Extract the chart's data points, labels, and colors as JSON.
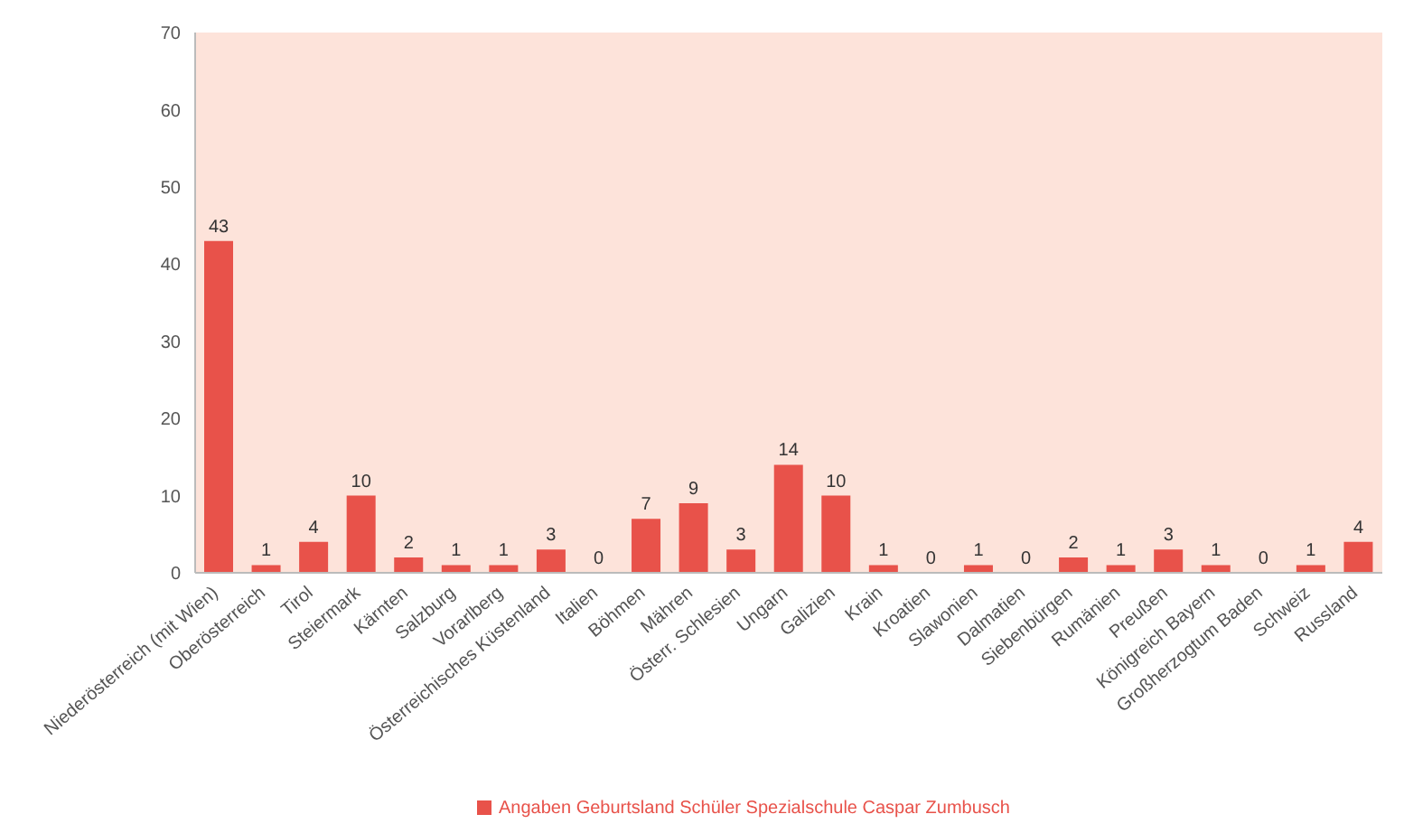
{
  "chart_data": {
    "type": "bar",
    "categories": [
      "Niederösterreich (mit Wien)",
      "Oberösterreich",
      "Tirol",
      "Steiermark",
      "Kärnten",
      "Salzburg",
      "Vorarlberg",
      "Österreichisches Küstenland",
      "Italien",
      "Böhmen",
      "Mähren",
      "Österr. Schlesien",
      "Ungarn",
      "Galizien",
      "Krain",
      "Kroatien",
      "Slawonien",
      "Dalmatien",
      "Siebenbürgen",
      "Rumänien",
      "Preußen",
      "Königreich Bayern",
      "Großherzogtum Baden",
      "Schweiz",
      "Russland"
    ],
    "series": [
      {
        "name": "Angaben Geburtsland Schüler Spezialschule Caspar Zumbusch",
        "color": "#e8524a",
        "values": [
          43,
          1,
          4,
          10,
          2,
          1,
          1,
          3,
          0,
          7,
          9,
          3,
          14,
          10,
          1,
          0,
          1,
          0,
          2,
          1,
          3,
          1,
          0,
          1,
          4
        ]
      }
    ],
    "ylim": [
      0,
      70
    ],
    "yticks": [
      0,
      10,
      20,
      30,
      40,
      50,
      60,
      70
    ],
    "data_labels": true,
    "legend": "bottom",
    "grid": false
  }
}
